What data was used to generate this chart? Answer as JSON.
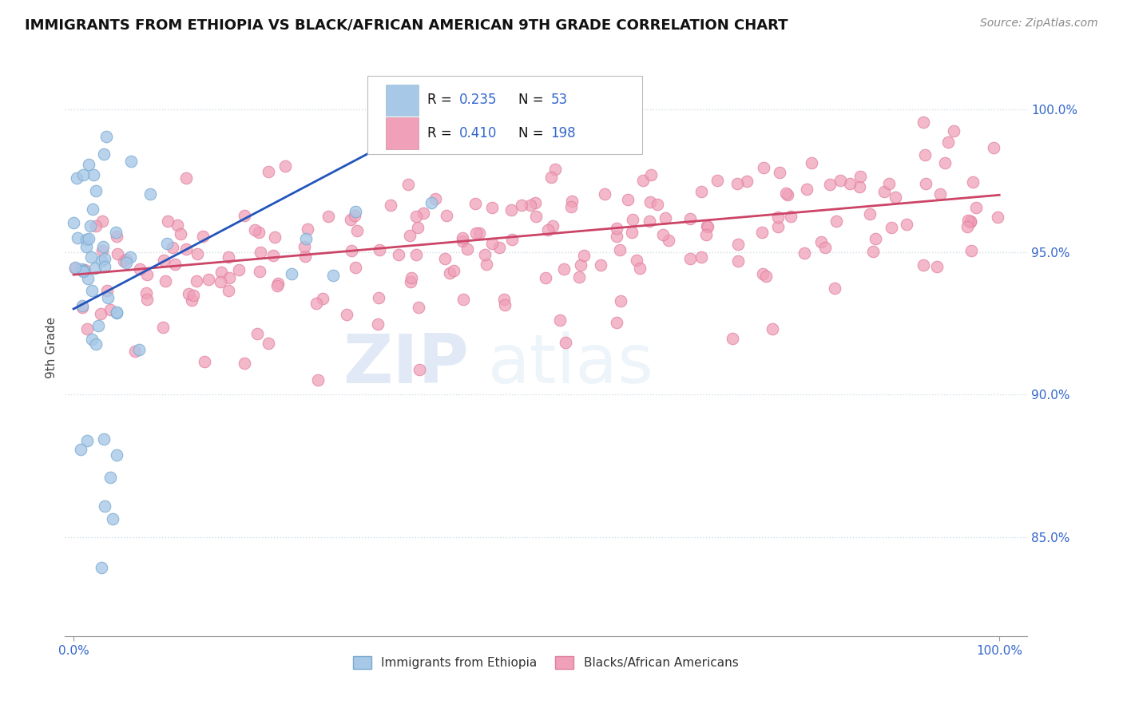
{
  "title": "IMMIGRANTS FROM ETHIOPIA VS BLACK/AFRICAN AMERICAN 9TH GRADE CORRELATION CHART",
  "source": "Source: ZipAtlas.com",
  "ylabel": "9th Grade",
  "color_blue": "#a8c8e8",
  "color_pink": "#f0a0b8",
  "color_blue_edge": "#7aaad0",
  "color_pink_edge": "#e080a0",
  "trendline_blue": "#2255bb",
  "trendline_pink": "#cc4466",
  "blue_trend_x": [
    0.0,
    0.42
  ],
  "blue_trend_y": [
    0.93,
    1.002
  ],
  "pink_trend_x": [
    0.0,
    1.0
  ],
  "pink_trend_y": [
    0.942,
    0.97
  ],
  "yticks": [
    0.85,
    0.9,
    0.95,
    1.0
  ],
  "ytick_labels": [
    "85.0%",
    "90.0%",
    "95.0%",
    "100.0%"
  ],
  "xtick_labels": [
    "0.0%",
    "100.0%"
  ],
  "ymin": 0.815,
  "ymax": 1.018,
  "xmin": -0.01,
  "xmax": 1.03,
  "legend_label1": "Immigrants from Ethiopia",
  "legend_label2": "Blacks/African Americans",
  "watermark_zip": "ZIP",
  "watermark_atlas": "atlas",
  "grid_color": "#d0dde8",
  "title_fontsize": 13,
  "source_fontsize": 10
}
